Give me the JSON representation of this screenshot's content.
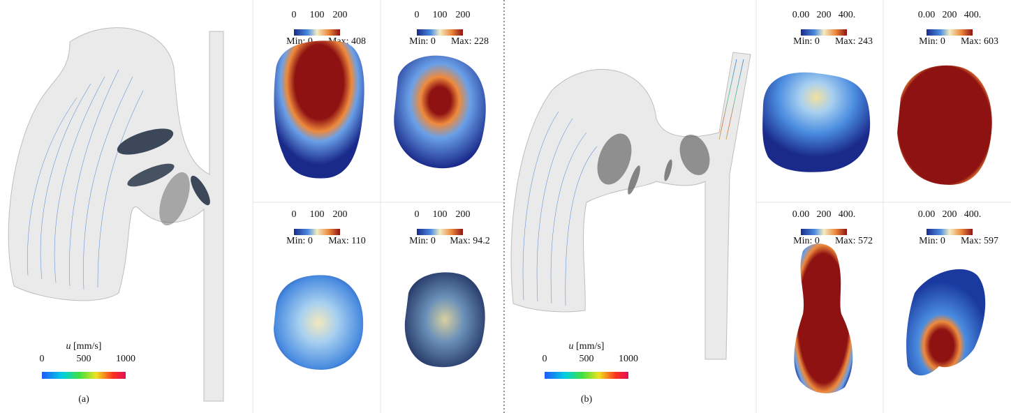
{
  "panels": [
    {
      "label": "(a)",
      "colorbar": {
        "symbol": "u",
        "unit": "[mm/s]",
        "ticks": [
          "0",
          "500",
          "1000"
        ]
      },
      "sections": [
        {
          "ticks": [
            "0",
            "100",
            "200"
          ],
          "min": "Min: 0",
          "max": "Max: 408"
        },
        {
          "ticks": [
            "0",
            "100",
            "200"
          ],
          "min": "Min: 0",
          "max": "Max: 228"
        },
        {
          "ticks": [
            "0",
            "100",
            "200"
          ],
          "min": "Min: 0",
          "max": "Max: 110"
        },
        {
          "ticks": [
            "0",
            "100",
            "200"
          ],
          "min": "Min: 0",
          "max": "Max: 94.2"
        }
      ]
    },
    {
      "label": "(b)",
      "colorbar": {
        "symbol": "u",
        "unit": "[mm/s]",
        "ticks": [
          "0",
          "500",
          "1000"
        ]
      },
      "sections": [
        {
          "ticks": [
            "0.00",
            "200",
            "400."
          ],
          "min": "Min: 0",
          "max": "Max: 243"
        },
        {
          "ticks": [
            "0.00",
            "200",
            "400."
          ],
          "min": "Min: 0",
          "max": "Max: 603"
        },
        {
          "ticks": [
            "0.00",
            "200",
            "400."
          ],
          "min": "Min: 0",
          "max": "Max: 572"
        },
        {
          "ticks": [
            "0.00",
            "200",
            "400."
          ],
          "min": "Min: 0",
          "max": "Max: 597"
        }
      ]
    }
  ]
}
